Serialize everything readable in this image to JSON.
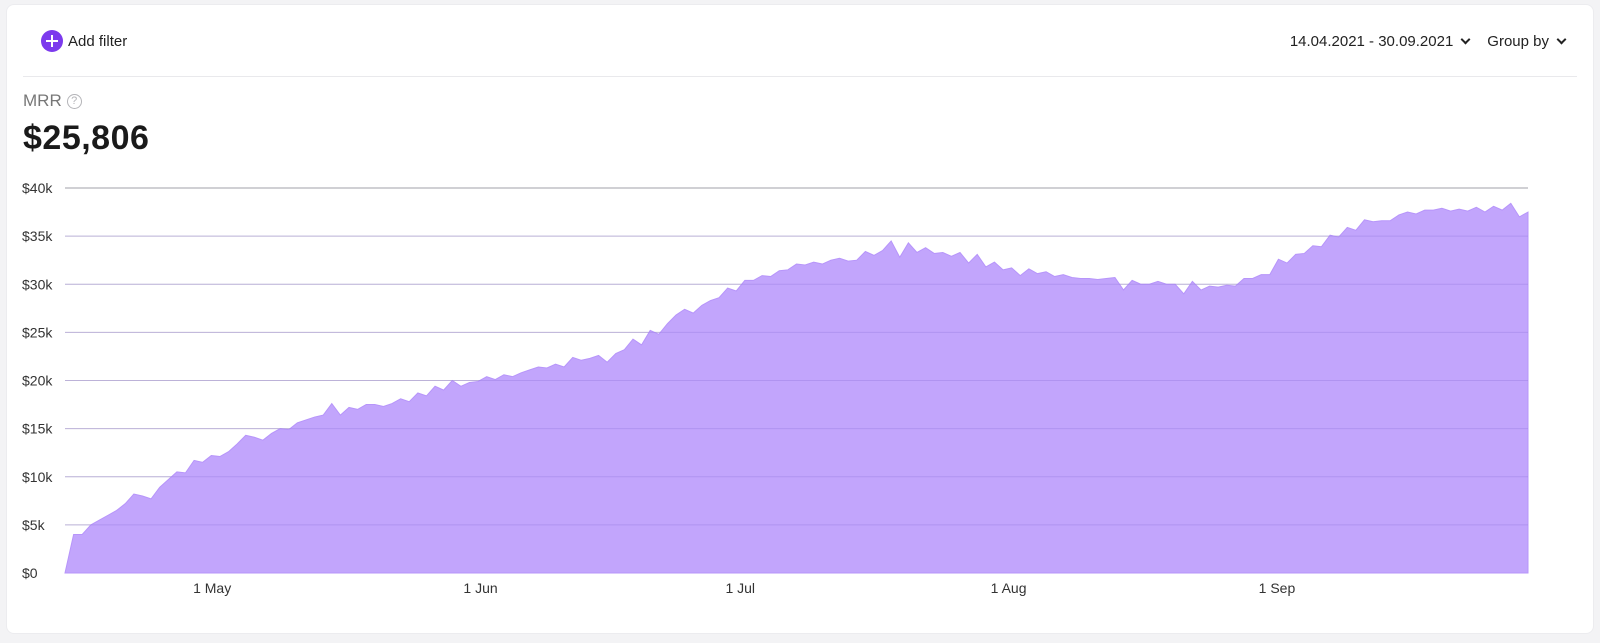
{
  "toolbar": {
    "add_filter_label": "Add filter",
    "date_range": "14.04.2021 - 30.09.2021",
    "group_by_label": "Group by"
  },
  "metric": {
    "label": "MRR",
    "help_symbol": "?",
    "value": "$25,806"
  },
  "colors": {
    "accent": "#7c3aed",
    "area_fill": "#c2a5fc",
    "area_stroke": "#b795fa",
    "grid": "#d4d4d8"
  },
  "chart_data": {
    "type": "area",
    "x_start": "2021-04-14",
    "x_end": "2021-09-30",
    "x_tick_labels": [
      "1 May",
      "1 Jun",
      "1 Jul",
      "1 Aug",
      "1 Sep"
    ],
    "x_tick_dates": [
      "2021-05-01",
      "2021-06-01",
      "2021-07-01",
      "2021-08-01",
      "2021-09-01"
    ],
    "y_tick_labels": [
      "$0",
      "$5k",
      "$10k",
      "$15k",
      "$20k",
      "$25k",
      "$30k",
      "$35k",
      "$40k"
    ],
    "y_ticks": [
      0,
      5000,
      10000,
      15000,
      20000,
      25000,
      30000,
      35000,
      40000
    ],
    "ylim": [
      0,
      40000
    ],
    "grid": true,
    "series": [
      {
        "values": [
          0,
          4000,
          4000,
          5000,
          5500,
          6000,
          6500,
          7200,
          8200,
          8000,
          7700,
          8900,
          9700,
          10500,
          10400,
          11700,
          11500,
          12200,
          12100,
          12600,
          13400,
          14300,
          14100,
          13800,
          14500,
          15000,
          14900,
          15600,
          15900,
          16200,
          16400,
          17600,
          16400,
          17200,
          17000,
          17500,
          17500,
          17300,
          17600,
          18100,
          17800,
          18700,
          18400,
          19400,
          19000,
          20000,
          19400,
          19800,
          19900,
          20400,
          20100,
          20600,
          20400,
          20800,
          21100,
          21400,
          21300,
          21700,
          21400,
          22400,
          22100,
          22300,
          22600,
          21900,
          22800,
          23200,
          24300,
          23700,
          25200,
          24800,
          25900,
          26800,
          27400,
          27000,
          27800,
          28300,
          28600,
          29600,
          29300,
          30400,
          30400,
          30900,
          30800,
          31400,
          31500,
          32100,
          32000,
          32300,
          32100,
          32500,
          32700,
          32400,
          32500,
          33400,
          33000,
          33500,
          34500,
          32800,
          34300,
          33300,
          33800,
          33200,
          33300,
          32900,
          33300,
          32200,
          33100,
          31800,
          32300,
          31500,
          31700,
          30900,
          31600,
          31100,
          31300,
          30800,
          31000,
          30700,
          30600,
          30600,
          30500,
          30600,
          30700,
          29400,
          30400,
          30000,
          30000,
          30300,
          30000,
          30000,
          29000,
          30300,
          29400,
          29800,
          29700,
          29900,
          29800,
          30600,
          30600,
          31000,
          31000,
          32600,
          32200,
          33100,
          33200,
          34000,
          33900,
          35100,
          34900,
          35900,
          35600,
          36700,
          36500,
          36600,
          36600,
          37200,
          37500,
          37300,
          37700,
          37700,
          37900,
          37600,
          37800,
          37600,
          38000,
          37500,
          38100,
          37700,
          38400,
          37000,
          37500
        ]
      }
    ]
  }
}
